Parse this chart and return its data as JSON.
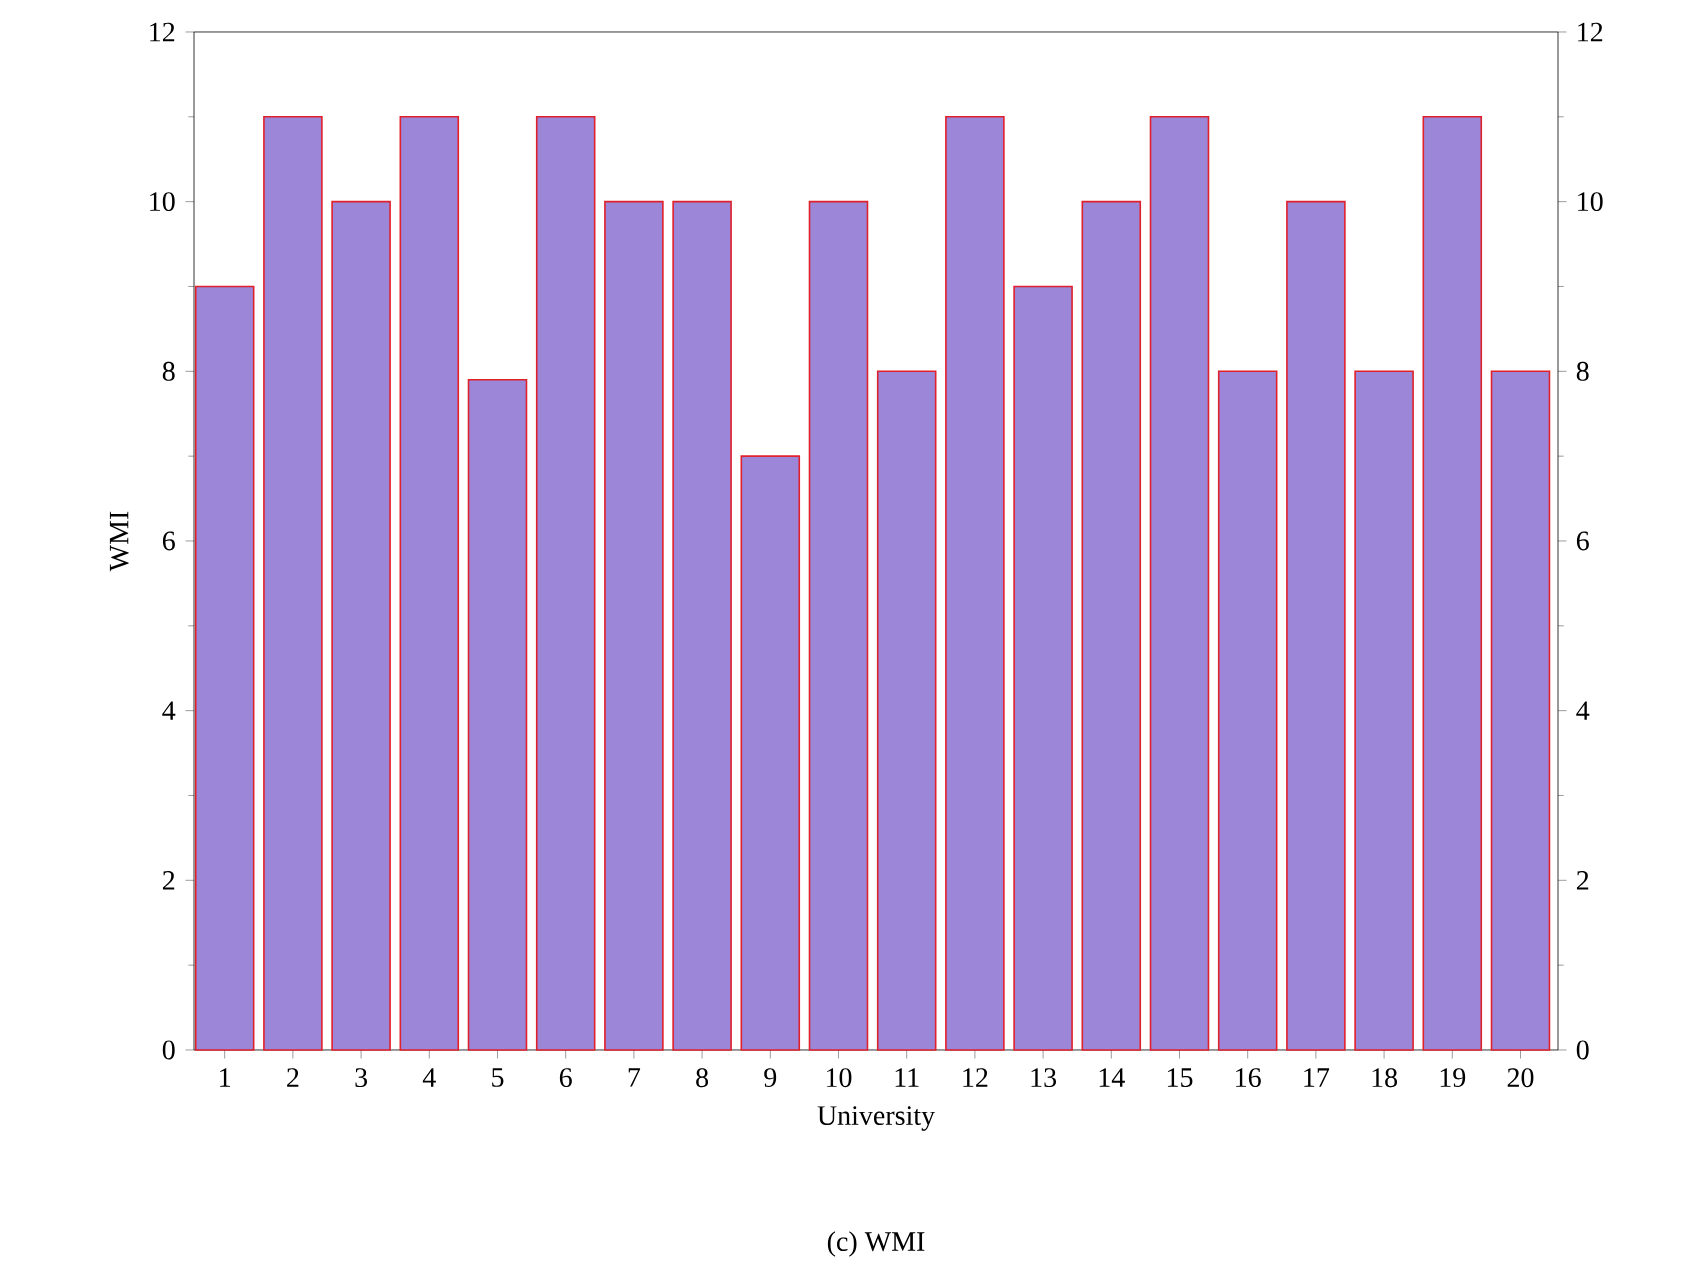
{
  "chart_data": {
    "type": "bar",
    "xlabel": "University",
    "ylabel": "WMI",
    "categories": [
      "1",
      "2",
      "3",
      "4",
      "5",
      "6",
      "7",
      "8",
      "9",
      "10",
      "11",
      "12",
      "13",
      "14",
      "15",
      "16",
      "17",
      "18",
      "19",
      "20"
    ],
    "values": [
      9,
      11,
      10,
      11,
      7.9,
      11,
      10,
      10,
      7,
      10,
      8,
      11,
      9,
      10,
      11,
      8,
      10,
      8,
      11,
      8
    ],
    "color": "#9b86d8",
    "ylim": [
      0,
      12
    ],
    "yticks": [
      0,
      2,
      4,
      6,
      8,
      10,
      12
    ],
    "y2lim": [
      0,
      12
    ],
    "y2ticks": [
      0,
      2,
      4,
      6,
      8,
      10,
      12
    ],
    "grid": false,
    "annotations": [
      "(c) WMI"
    ]
  }
}
